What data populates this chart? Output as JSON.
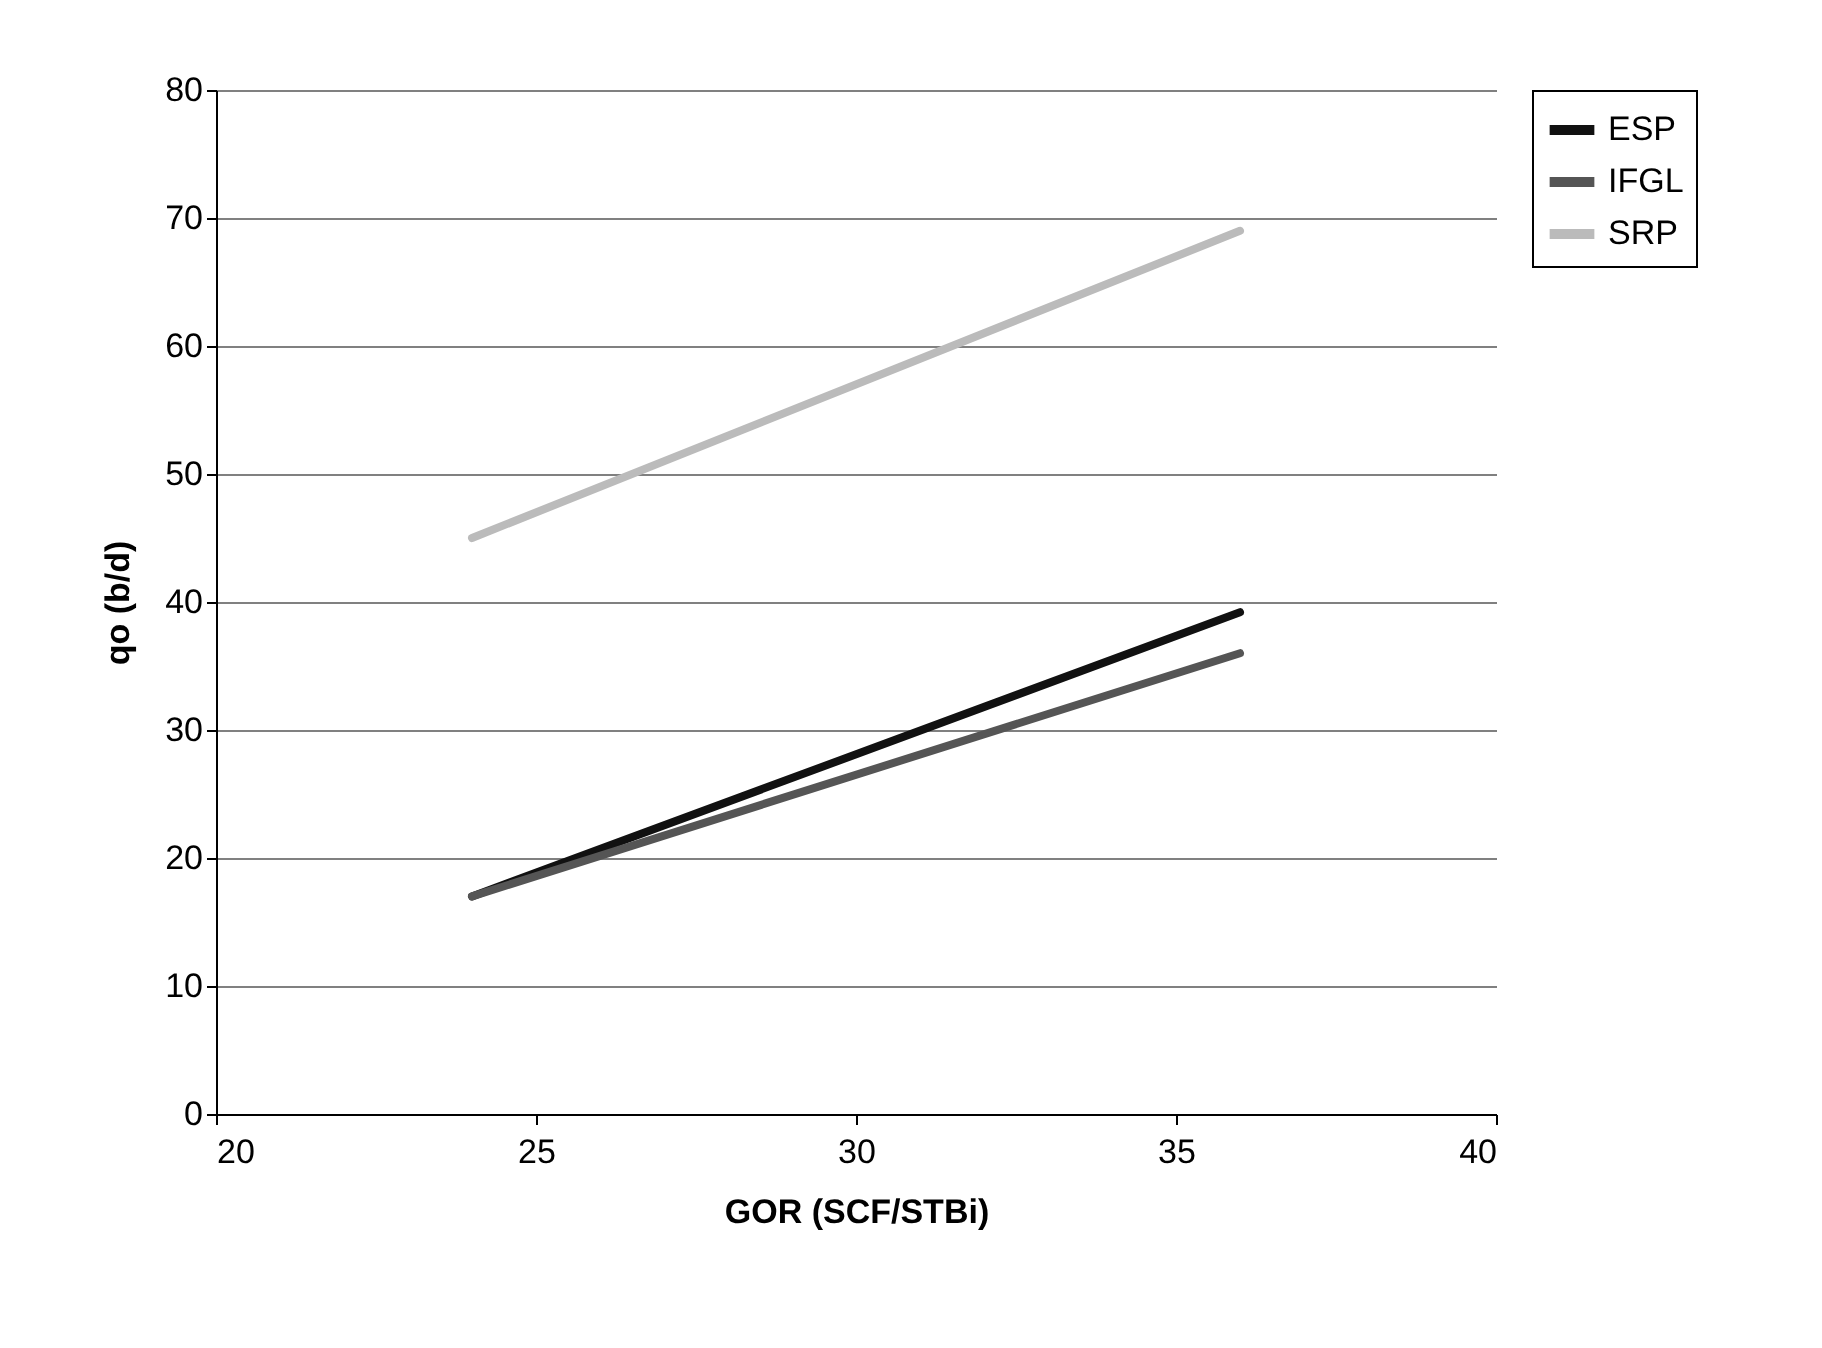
{
  "chart_data": {
    "type": "line",
    "xlabel": "GOR (SCF/STBi)",
    "ylabel": "qo (b/d)",
    "x": [
      24,
      36
    ],
    "series": [
      {
        "name": "ESP",
        "color": "#111111",
        "values": [
          17,
          39.2
        ]
      },
      {
        "name": "IFGL",
        "color": "#555555",
        "values": [
          17,
          36
        ]
      },
      {
        "name": "SRP",
        "color": "#bbbbbb",
        "values": [
          45,
          69
        ]
      }
    ],
    "xlim": [
      20,
      40
    ],
    "xticks": [
      20,
      25,
      30,
      35,
      40
    ],
    "ylim": [
      0,
      80
    ],
    "yticks": [
      0,
      10,
      20,
      30,
      40,
      50,
      60,
      70,
      80
    ],
    "grid": "y",
    "legend": "right",
    "marker": "none",
    "line_style": "solid"
  }
}
